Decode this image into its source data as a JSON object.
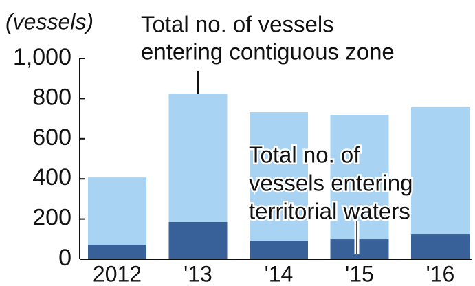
{
  "chart_data": {
    "type": "bar",
    "unit_label": "(vessels)",
    "categories": [
      "2012",
      "'13",
      "'14",
      "'15",
      "'16"
    ],
    "series": [
      {
        "name": "Total no. of vessels entering contiguous zone",
        "name_lines": [
          "Total no. of vessels",
          "entering contiguous zone"
        ],
        "color": "#a9d3f2",
        "values": [
          407,
          825,
          733,
          719,
          757
        ]
      },
      {
        "name": "Total no. of vessels entering territorial waters",
        "name_lines": [
          "Total no. of",
          "vessels entering",
          "territorial waters"
        ],
        "color": "#386199",
        "values": [
          72,
          185,
          92,
          99,
          123
        ]
      }
    ],
    "ylim": [
      0,
      1000
    ],
    "yticks": [
      0,
      200,
      400,
      600,
      {
        "value": 800,
        "label": "800"
      },
      {
        "value": 1000,
        "label": "1,000"
      }
    ],
    "overlap": true
  }
}
